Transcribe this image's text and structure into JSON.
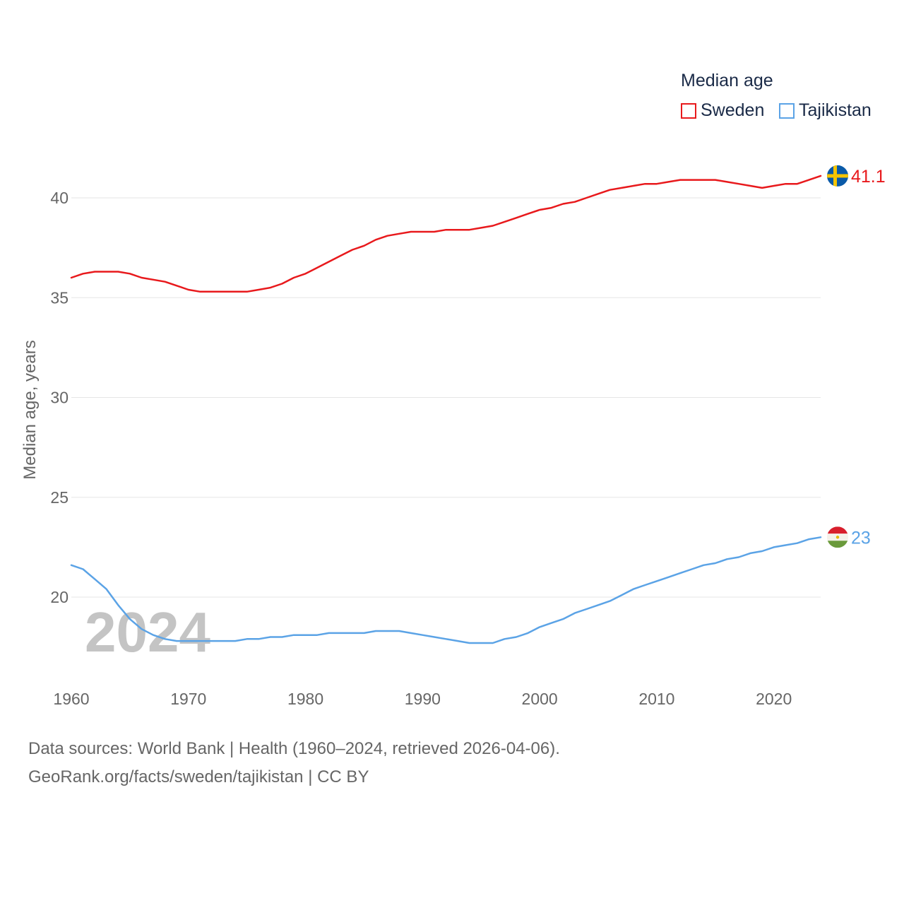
{
  "chart_data": {
    "type": "line",
    "title": "Median age",
    "xlabel": "",
    "ylabel": "Median age, years",
    "xlim": [
      1960,
      2024
    ],
    "ylim": [
      16.5,
      42.5
    ],
    "yticks": [
      20,
      25,
      30,
      35,
      40
    ],
    "xticks": [
      1960,
      1970,
      1980,
      1990,
      2000,
      2010,
      2020
    ],
    "watermark_year": "2024",
    "series": [
      {
        "name": "Sweden",
        "color": "#e8191c",
        "end_label": "41.1",
        "flag": "sweden-flag-icon",
        "x": [
          1960,
          1961,
          1962,
          1963,
          1964,
          1965,
          1966,
          1967,
          1968,
          1969,
          1970,
          1971,
          1972,
          1973,
          1974,
          1975,
          1976,
          1977,
          1978,
          1979,
          1980,
          1981,
          1982,
          1983,
          1984,
          1985,
          1986,
          1987,
          1988,
          1989,
          1990,
          1991,
          1992,
          1993,
          1994,
          1995,
          1996,
          1997,
          1998,
          1999,
          2000,
          2001,
          2002,
          2003,
          2004,
          2005,
          2006,
          2007,
          2008,
          2009,
          2010,
          2011,
          2012,
          2013,
          2014,
          2015,
          2016,
          2017,
          2018,
          2019,
          2020,
          2021,
          2022,
          2023,
          2024
        ],
        "values": [
          36.0,
          36.2,
          36.3,
          36.3,
          36.3,
          36.2,
          36.0,
          35.9,
          35.8,
          35.6,
          35.4,
          35.3,
          35.3,
          35.3,
          35.3,
          35.3,
          35.4,
          35.5,
          35.7,
          36.0,
          36.2,
          36.5,
          36.8,
          37.1,
          37.4,
          37.6,
          37.9,
          38.1,
          38.2,
          38.3,
          38.3,
          38.3,
          38.4,
          38.4,
          38.4,
          38.5,
          38.6,
          38.8,
          39.0,
          39.2,
          39.4,
          39.5,
          39.7,
          39.8,
          40.0,
          40.2,
          40.4,
          40.5,
          40.6,
          40.7,
          40.7,
          40.8,
          40.9,
          40.9,
          40.9,
          40.9,
          40.8,
          40.7,
          40.6,
          40.5,
          40.6,
          40.7,
          40.7,
          40.9,
          41.1
        ]
      },
      {
        "name": "Tajikistan",
        "color": "#5ba3e6",
        "end_label": "23",
        "flag": "tajikistan-flag-icon",
        "x": [
          1960,
          1961,
          1962,
          1963,
          1964,
          1965,
          1966,
          1967,
          1968,
          1969,
          1970,
          1971,
          1972,
          1973,
          1974,
          1975,
          1976,
          1977,
          1978,
          1979,
          1980,
          1981,
          1982,
          1983,
          1984,
          1985,
          1986,
          1987,
          1988,
          1989,
          1990,
          1991,
          1992,
          1993,
          1994,
          1995,
          1996,
          1997,
          1998,
          1999,
          2000,
          2001,
          2002,
          2003,
          2004,
          2005,
          2006,
          2007,
          2008,
          2009,
          2010,
          2011,
          2012,
          2013,
          2014,
          2015,
          2016,
          2017,
          2018,
          2019,
          2020,
          2021,
          2022,
          2023,
          2024
        ],
        "values": [
          21.6,
          21.4,
          20.9,
          20.4,
          19.6,
          18.9,
          18.4,
          18.1,
          17.9,
          17.8,
          17.8,
          17.8,
          17.8,
          17.8,
          17.8,
          17.9,
          17.9,
          18.0,
          18.0,
          18.1,
          18.1,
          18.1,
          18.2,
          18.2,
          18.2,
          18.2,
          18.3,
          18.3,
          18.3,
          18.2,
          18.1,
          18.0,
          17.9,
          17.8,
          17.7,
          17.7,
          17.7,
          17.9,
          18.0,
          18.2,
          18.5,
          18.7,
          18.9,
          19.2,
          19.4,
          19.6,
          19.8,
          20.1,
          20.4,
          20.6,
          20.8,
          21.0,
          21.2,
          21.4,
          21.6,
          21.7,
          21.9,
          22.0,
          22.2,
          22.3,
          22.5,
          22.6,
          22.7,
          22.9,
          23.0
        ]
      }
    ]
  },
  "legend": {
    "title": "Median age",
    "items": [
      "Sweden",
      "Tajikistan"
    ]
  },
  "footer": {
    "line1": "Data sources: World Bank | Health (1960–2024, retrieved 2026-04-06).",
    "line2": "GeoRank.org/facts/sweden/tajikistan | CC BY"
  }
}
